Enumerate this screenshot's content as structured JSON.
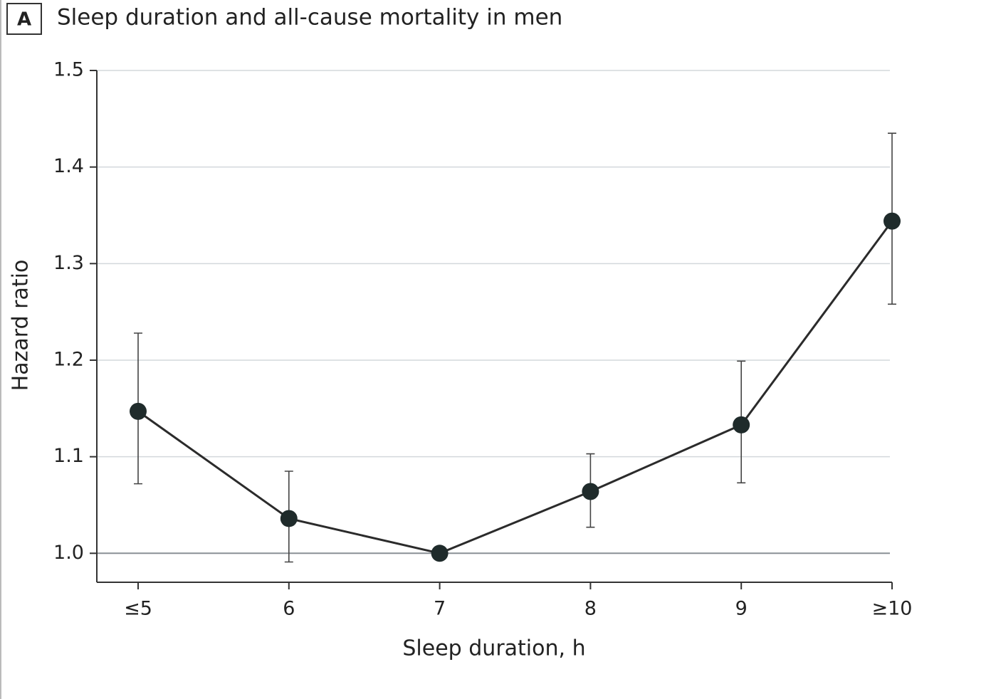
{
  "chart_data": {
    "type": "line",
    "panel_label": "A",
    "title": "Sleep duration and all-cause mortality in men",
    "x_label": "Sleep duration, h",
    "y_label": "Hazard ratio",
    "categories": [
      "≤5",
      "6",
      "7",
      "8",
      "9",
      "≥10"
    ],
    "values": [
      1.147,
      1.036,
      1.0,
      1.064,
      1.133,
      1.344
    ],
    "ci_lower": [
      1.072,
      0.991,
      null,
      1.027,
      1.073,
      1.258
    ],
    "ci_upper": [
      1.228,
      1.085,
      null,
      1.103,
      1.199,
      1.435
    ],
    "color": "#1f2b2b",
    "ylim": [
      0.97,
      1.5
    ],
    "yticks": [
      {
        "value": 1,
        "label": "1.0"
      },
      1.1,
      1.2,
      1.3,
      1.4,
      1.5
    ],
    "grid": true
  }
}
